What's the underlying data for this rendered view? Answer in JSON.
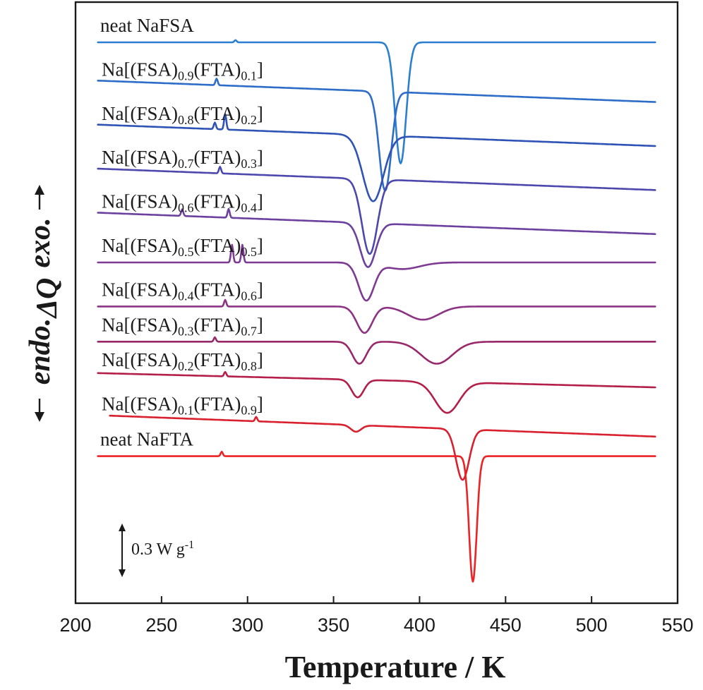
{
  "chart_data": {
    "type": "line",
    "title": "",
    "xlabel": "Temperature / K",
    "ylabel": {
      "endo": "endo.",
      "quantity": "ΔQ",
      "exo": "exo."
    },
    "xlim": [
      200,
      550
    ],
    "xticks": [
      200,
      250,
      300,
      350,
      400,
      450,
      500,
      550
    ],
    "scale_bar": {
      "value": "0.3 W g",
      "exponent": "-1"
    },
    "curve_shape_note": "y values are heat-flow offsets relative to each curve's baseline in W g-1 (negative = endothermic dip)",
    "series": [
      {
        "name": "neat NaFSA",
        "label_parts": [
          {
            "t": "neat NaFSA",
            "sub": false
          }
        ],
        "color": "#2c7fd0",
        "baseline": 0.0,
        "x_range": [
          213,
          537
        ],
        "slope": 0.0,
        "peaks": [
          {
            "x": 389,
            "depth": 0.55,
            "width": 3.2
          }
        ],
        "wiggles": [
          {
            "x": 293,
            "amp": 0.01
          }
        ]
      },
      {
        "name": "Na[(FSA)0.9(FTA)0.1]",
        "label_parts": [
          {
            "t": "Na[(FSA)",
            "sub": false
          },
          {
            "t": "0.9",
            "sub": true
          },
          {
            "t": "(FTA)",
            "sub": false
          },
          {
            "t": "0.1",
            "sub": true
          },
          {
            "t": "]",
            "sub": false
          }
        ],
        "color": "#2d6cc7",
        "baseline": -0.2,
        "x_range": [
          213,
          537
        ],
        "slope": -0.0003,
        "peaks": [
          {
            "x": 380,
            "depth": 0.45,
            "width": 3.5
          }
        ],
        "wiggles": [
          {
            "x": 282,
            "amp": 0.03
          }
        ]
      },
      {
        "name": "Na[(FSA)0.8(FTA)0.2]",
        "label_parts": [
          {
            "t": "Na[(FSA)",
            "sub": false
          },
          {
            "t": "0.8",
            "sub": true
          },
          {
            "t": "(FTA)",
            "sub": false
          },
          {
            "t": "0.2",
            "sub": true
          },
          {
            "t": "]",
            "sub": false
          }
        ],
        "color": "#2f52b5",
        "baseline": -0.4,
        "x_range": [
          213,
          537
        ],
        "slope": -0.0003,
        "peaks": [
          {
            "x": 373,
            "depth": 0.3,
            "width": 6
          }
        ],
        "wiggles": [
          {
            "x": 281,
            "amp": 0.03
          },
          {
            "x": 287,
            "amp": 0.07
          }
        ]
      },
      {
        "name": "Na[(FSA)0.7(FTA)0.3]",
        "label_parts": [
          {
            "t": "Na[(FSA)",
            "sub": false
          },
          {
            "t": "0.7",
            "sub": true
          },
          {
            "t": "(FTA)",
            "sub": false
          },
          {
            "t": "0.3",
            "sub": true
          },
          {
            "t": "]",
            "sub": false
          }
        ],
        "color": "#4c48ad",
        "baseline": -0.6,
        "x_range": [
          213,
          537
        ],
        "slope": -0.0003,
        "peaks": [
          {
            "x": 371,
            "depth": 0.34,
            "width": 4.5
          }
        ],
        "wiggles": [
          {
            "x": 284,
            "amp": 0.03
          }
        ]
      },
      {
        "name": "Na[(FSA)0.6(FTA)0.4]",
        "label_parts": [
          {
            "t": "Na[(FSA)",
            "sub": false
          },
          {
            "t": "0.6",
            "sub": true
          },
          {
            "t": "(FTA)",
            "sub": false
          },
          {
            "t": "0.4",
            "sub": true
          },
          {
            "t": "]",
            "sub": false
          }
        ],
        "color": "#6b409f",
        "baseline": -0.8,
        "x_range": [
          213,
          537
        ],
        "slope": -0.0003,
        "peaks": [
          {
            "x": 370,
            "depth": 0.2,
            "width": 4.5
          }
        ],
        "wiggles": [
          {
            "x": 262,
            "amp": 0.03
          },
          {
            "x": 289,
            "amp": 0.04
          }
        ]
      },
      {
        "name": "Na[(FSA)0.5(FTA)0.5]",
        "label_parts": [
          {
            "t": "Na[(FSA)",
            "sub": false
          },
          {
            "t": "0.5",
            "sub": true
          },
          {
            "t": "(FTA)",
            "sub": false
          },
          {
            "t": "0.5",
            "sub": true
          },
          {
            "t": "]",
            "sub": false
          }
        ],
        "color": "#7e3a92",
        "baseline": -1.0,
        "x_range": [
          213,
          537
        ],
        "slope": 0.0,
        "peaks": [
          {
            "x": 369,
            "depth": 0.17,
            "width": 4.5
          },
          {
            "x": 390,
            "depth": 0.03,
            "width": 10
          }
        ],
        "wiggles": [
          {
            "x": 291,
            "amp": 0.08
          },
          {
            "x": 297,
            "amp": 0.08
          }
        ]
      },
      {
        "name": "Na[(FSA)0.4(FTA)0.6]",
        "label_parts": [
          {
            "t": "Na[(FSA)",
            "sub": false
          },
          {
            "t": "0.4",
            "sub": true
          },
          {
            "t": "(FTA)",
            "sub": false
          },
          {
            "t": "0.6",
            "sub": true
          },
          {
            "t": "]",
            "sub": false
          }
        ],
        "color": "#8c3483",
        "baseline": -1.2,
        "x_range": [
          213,
          537
        ],
        "slope": 0.0,
        "peaks": [
          {
            "x": 368,
            "depth": 0.12,
            "width": 4.5
          },
          {
            "x": 402,
            "depth": 0.06,
            "width": 9
          }
        ],
        "wiggles": [
          {
            "x": 287,
            "amp": 0.03
          }
        ]
      },
      {
        "name": "Na[(FSA)0.3(FTA)0.7]",
        "label_parts": [
          {
            "t": "Na[(FSA)",
            "sub": false
          },
          {
            "t": "0.3",
            "sub": true
          },
          {
            "t": "(FTA)",
            "sub": false
          },
          {
            "t": "0.7",
            "sub": true
          },
          {
            "t": "]",
            "sub": false
          }
        ],
        "color": "#99286a",
        "baseline": -1.36,
        "x_range": [
          213,
          537
        ],
        "slope": 0.0,
        "peaks": [
          {
            "x": 365,
            "depth": 0.1,
            "width": 4
          },
          {
            "x": 410,
            "depth": 0.1,
            "width": 9
          }
        ],
        "wiggles": [
          {
            "x": 281,
            "amp": 0.02
          }
        ]
      },
      {
        "name": "Na[(FSA)0.2(FTA)0.8]",
        "label_parts": [
          {
            "t": "Na[(FSA)",
            "sub": false
          },
          {
            "t": "0.2",
            "sub": true
          },
          {
            "t": "(FTA)",
            "sub": false
          },
          {
            "t": "0.8",
            "sub": true
          },
          {
            "t": "]",
            "sub": false
          }
        ],
        "color": "#b31f48",
        "baseline": -1.52,
        "x_range": [
          213,
          537
        ],
        "slope": -0.0002,
        "peaks": [
          {
            "x": 364,
            "depth": 0.08,
            "width": 3.5
          },
          {
            "x": 416,
            "depth": 0.14,
            "width": 7
          }
        ],
        "wiggles": [
          {
            "x": 287,
            "amp": 0.02
          }
        ]
      },
      {
        "name": "Na[(FSA)0.1(FTA)0.9]",
        "label_parts": [
          {
            "t": "Na[(FSA)",
            "sub": false
          },
          {
            "t": "0.1",
            "sub": true
          },
          {
            "t": "(FTA)",
            "sub": false
          },
          {
            "t": "0.9",
            "sub": true
          },
          {
            "t": "]",
            "sub": false
          }
        ],
        "color": "#d8202e",
        "baseline": -1.72,
        "x_range": [
          220,
          537
        ],
        "slope": -0.0003,
        "peaks": [
          {
            "x": 363,
            "depth": 0.03,
            "width": 3
          },
          {
            "x": 425,
            "depth": 0.23,
            "width": 3.8
          }
        ],
        "wiggles": [
          {
            "x": 305,
            "amp": 0.02
          }
        ]
      },
      {
        "name": "neat NaFTA",
        "label_parts": [
          {
            "t": "neat NaFTA",
            "sub": false
          }
        ],
        "color": "#ec2224",
        "baseline": -1.88,
        "x_range": [
          213,
          537
        ],
        "slope": 0.0,
        "peaks": [
          {
            "x": 431,
            "depth": 0.57,
            "width": 2.2
          }
        ],
        "wiggles": [
          {
            "x": 285,
            "amp": 0.02
          }
        ]
      }
    ]
  }
}
